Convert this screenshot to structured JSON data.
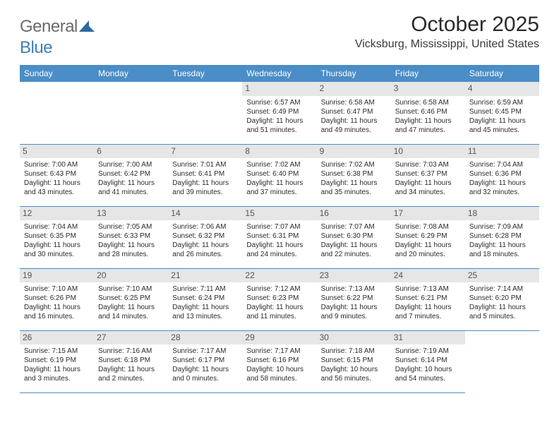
{
  "logo": {
    "word1": "General",
    "word2": "Blue"
  },
  "title": "October 2025",
  "location": "Vicksburg, Mississippi, United States",
  "colors": {
    "header_bg": "#4b8dc6",
    "header_text": "#ffffff",
    "daynum_bg": "#e6e6e6",
    "border": "#4b8dc6",
    "logo_gray": "#6b6b6b",
    "logo_blue": "#3e7fb8"
  },
  "weekdays": [
    "Sunday",
    "Monday",
    "Tuesday",
    "Wednesday",
    "Thursday",
    "Friday",
    "Saturday"
  ],
  "weeks": [
    [
      null,
      null,
      null,
      {
        "d": "1",
        "sr": "6:57 AM",
        "ss": "6:49 PM",
        "dl1": "Daylight: 11 hours",
        "dl2": "and 51 minutes."
      },
      {
        "d": "2",
        "sr": "6:58 AM",
        "ss": "6:47 PM",
        "dl1": "Daylight: 11 hours",
        "dl2": "and 49 minutes."
      },
      {
        "d": "3",
        "sr": "6:58 AM",
        "ss": "6:46 PM",
        "dl1": "Daylight: 11 hours",
        "dl2": "and 47 minutes."
      },
      {
        "d": "4",
        "sr": "6:59 AM",
        "ss": "6:45 PM",
        "dl1": "Daylight: 11 hours",
        "dl2": "and 45 minutes."
      }
    ],
    [
      {
        "d": "5",
        "sr": "7:00 AM",
        "ss": "6:43 PM",
        "dl1": "Daylight: 11 hours",
        "dl2": "and 43 minutes."
      },
      {
        "d": "6",
        "sr": "7:00 AM",
        "ss": "6:42 PM",
        "dl1": "Daylight: 11 hours",
        "dl2": "and 41 minutes."
      },
      {
        "d": "7",
        "sr": "7:01 AM",
        "ss": "6:41 PM",
        "dl1": "Daylight: 11 hours",
        "dl2": "and 39 minutes."
      },
      {
        "d": "8",
        "sr": "7:02 AM",
        "ss": "6:40 PM",
        "dl1": "Daylight: 11 hours",
        "dl2": "and 37 minutes."
      },
      {
        "d": "9",
        "sr": "7:02 AM",
        "ss": "6:38 PM",
        "dl1": "Daylight: 11 hours",
        "dl2": "and 35 minutes."
      },
      {
        "d": "10",
        "sr": "7:03 AM",
        "ss": "6:37 PM",
        "dl1": "Daylight: 11 hours",
        "dl2": "and 34 minutes."
      },
      {
        "d": "11",
        "sr": "7:04 AM",
        "ss": "6:36 PM",
        "dl1": "Daylight: 11 hours",
        "dl2": "and 32 minutes."
      }
    ],
    [
      {
        "d": "12",
        "sr": "7:04 AM",
        "ss": "6:35 PM",
        "dl1": "Daylight: 11 hours",
        "dl2": "and 30 minutes."
      },
      {
        "d": "13",
        "sr": "7:05 AM",
        "ss": "6:33 PM",
        "dl1": "Daylight: 11 hours",
        "dl2": "and 28 minutes."
      },
      {
        "d": "14",
        "sr": "7:06 AM",
        "ss": "6:32 PM",
        "dl1": "Daylight: 11 hours",
        "dl2": "and 26 minutes."
      },
      {
        "d": "15",
        "sr": "7:07 AM",
        "ss": "6:31 PM",
        "dl1": "Daylight: 11 hours",
        "dl2": "and 24 minutes."
      },
      {
        "d": "16",
        "sr": "7:07 AM",
        "ss": "6:30 PM",
        "dl1": "Daylight: 11 hours",
        "dl2": "and 22 minutes."
      },
      {
        "d": "17",
        "sr": "7:08 AM",
        "ss": "6:29 PM",
        "dl1": "Daylight: 11 hours",
        "dl2": "and 20 minutes."
      },
      {
        "d": "18",
        "sr": "7:09 AM",
        "ss": "6:28 PM",
        "dl1": "Daylight: 11 hours",
        "dl2": "and 18 minutes."
      }
    ],
    [
      {
        "d": "19",
        "sr": "7:10 AM",
        "ss": "6:26 PM",
        "dl1": "Daylight: 11 hours",
        "dl2": "and 16 minutes."
      },
      {
        "d": "20",
        "sr": "7:10 AM",
        "ss": "6:25 PM",
        "dl1": "Daylight: 11 hours",
        "dl2": "and 14 minutes."
      },
      {
        "d": "21",
        "sr": "7:11 AM",
        "ss": "6:24 PM",
        "dl1": "Daylight: 11 hours",
        "dl2": "and 13 minutes."
      },
      {
        "d": "22",
        "sr": "7:12 AM",
        "ss": "6:23 PM",
        "dl1": "Daylight: 11 hours",
        "dl2": "and 11 minutes."
      },
      {
        "d": "23",
        "sr": "7:13 AM",
        "ss": "6:22 PM",
        "dl1": "Daylight: 11 hours",
        "dl2": "and 9 minutes."
      },
      {
        "d": "24",
        "sr": "7:13 AM",
        "ss": "6:21 PM",
        "dl1": "Daylight: 11 hours",
        "dl2": "and 7 minutes."
      },
      {
        "d": "25",
        "sr": "7:14 AM",
        "ss": "6:20 PM",
        "dl1": "Daylight: 11 hours",
        "dl2": "and 5 minutes."
      }
    ],
    [
      {
        "d": "26",
        "sr": "7:15 AM",
        "ss": "6:19 PM",
        "dl1": "Daylight: 11 hours",
        "dl2": "and 3 minutes."
      },
      {
        "d": "27",
        "sr": "7:16 AM",
        "ss": "6:18 PM",
        "dl1": "Daylight: 11 hours",
        "dl2": "and 2 minutes."
      },
      {
        "d": "28",
        "sr": "7:17 AM",
        "ss": "6:17 PM",
        "dl1": "Daylight: 11 hours",
        "dl2": "and 0 minutes."
      },
      {
        "d": "29",
        "sr": "7:17 AM",
        "ss": "6:16 PM",
        "dl1": "Daylight: 10 hours",
        "dl2": "and 58 minutes."
      },
      {
        "d": "30",
        "sr": "7:18 AM",
        "ss": "6:15 PM",
        "dl1": "Daylight: 10 hours",
        "dl2": "and 56 minutes."
      },
      {
        "d": "31",
        "sr": "7:19 AM",
        "ss": "6:14 PM",
        "dl1": "Daylight: 10 hours",
        "dl2": "and 54 minutes."
      },
      null
    ]
  ],
  "labels": {
    "sunrise": "Sunrise:",
    "sunset": "Sunset:"
  }
}
